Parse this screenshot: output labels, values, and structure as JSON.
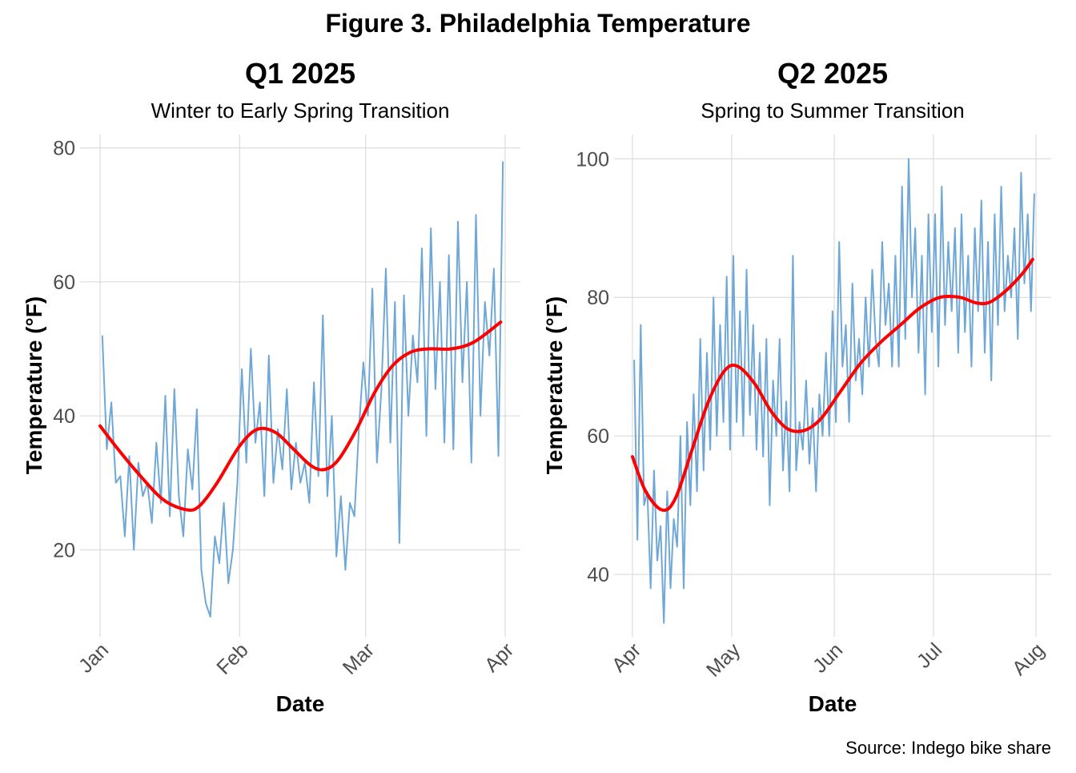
{
  "title": "Figure 3. Philadelphia Temperature",
  "caption": "Source: Indego bike share",
  "colors": {
    "raw": "#6fa8d6",
    "smooth": "#ff0000",
    "grid": "#d6d6d6"
  },
  "chart_data": [
    {
      "type": "line",
      "title": "Q1 2025",
      "subtitle": "Winter to Early Spring Transition",
      "xlabel": "Date",
      "ylabel": "Temperature (°F)",
      "xlim": [
        "2025-01-01",
        "2025-04-01"
      ],
      "ylim": [
        7,
        82
      ],
      "grid": true,
      "x_ticks": [
        {
          "date": "2025-01-01",
          "label": "Jan"
        },
        {
          "date": "2025-02-01",
          "label": "Feb"
        },
        {
          "date": "2025-03-01",
          "label": "Mar"
        },
        {
          "date": "2025-04-01",
          "label": "Apr"
        }
      ],
      "y_ticks": [
        20,
        40,
        60,
        80
      ],
      "year": 2025,
      "raw_series": [
        {
          "month": 1,
          "values": [
            52,
            35,
            42,
            30,
            31,
            22,
            34,
            20,
            33,
            28,
            30,
            24,
            36,
            27,
            43,
            25,
            44,
            28,
            22,
            35,
            29,
            41,
            17,
            12,
            10,
            22,
            18,
            27,
            15,
            20,
            30
          ]
        },
        {
          "month": 2,
          "values": [
            47,
            33,
            50,
            36,
            42,
            28,
            49,
            30,
            38,
            32,
            44,
            29,
            36,
            30,
            33,
            27,
            45,
            31,
            55,
            28,
            40,
            19,
            28,
            17,
            27,
            25,
            38,
            48
          ]
        },
        {
          "month": 3,
          "values": [
            40,
            59,
            33,
            44,
            62,
            36,
            57,
            21,
            58,
            40,
            52,
            45,
            65,
            37,
            68,
            44,
            60,
            36,
            64,
            35,
            69,
            45,
            60,
            33,
            70,
            40,
            57,
            49,
            62,
            34,
            78
          ]
        }
      ],
      "smooth_series": [
        [
          "2025-01-01",
          38.5
        ],
        [
          "2025-01-05",
          35
        ],
        [
          "2025-01-10",
          31
        ],
        [
          "2025-01-15",
          27.5
        ],
        [
          "2025-01-20",
          26
        ],
        [
          "2025-01-23",
          26.5
        ],
        [
          "2025-01-27",
          30
        ],
        [
          "2025-02-01",
          35.5
        ],
        [
          "2025-02-05",
          38
        ],
        [
          "2025-02-09",
          37.5
        ],
        [
          "2025-02-13",
          35
        ],
        [
          "2025-02-17",
          32.5
        ],
        [
          "2025-02-20",
          32
        ],
        [
          "2025-02-23",
          33.5
        ],
        [
          "2025-02-27",
          38
        ],
        [
          "2025-03-03",
          43.5
        ],
        [
          "2025-03-07",
          47.5
        ],
        [
          "2025-03-11",
          49.5
        ],
        [
          "2025-03-15",
          50
        ],
        [
          "2025-03-20",
          50
        ],
        [
          "2025-03-25",
          51
        ],
        [
          "2025-03-31",
          54
        ]
      ]
    },
    {
      "type": "line",
      "title": "Q2 2025",
      "subtitle": "Spring to Summer Transition",
      "xlabel": "Date",
      "ylabel": "Temperature (°F)",
      "xlim": [
        "2025-04-01",
        "2025-08-01"
      ],
      "ylim": [
        31,
        103.5
      ],
      "grid": true,
      "x_ticks": [
        {
          "date": "2025-04-01",
          "label": "Apr"
        },
        {
          "date": "2025-05-01",
          "label": "May"
        },
        {
          "date": "2025-06-01",
          "label": "Jun"
        },
        {
          "date": "2025-07-01",
          "label": "Jul"
        },
        {
          "date": "2025-08-01",
          "label": "Aug"
        }
      ],
      "y_ticks": [
        40,
        60,
        80,
        100
      ],
      "year": 2025,
      "raw_series": [
        {
          "month": 4,
          "values": [
            71,
            45,
            76,
            50,
            52,
            38,
            55,
            42,
            47,
            33,
            52,
            38,
            48,
            44,
            60,
            38,
            62,
            50,
            66,
            52,
            74,
            55,
            72,
            58,
            80,
            60,
            76,
            62,
            83,
            58
          ]
        },
        {
          "month": 5,
          "values": [
            86,
            62,
            78,
            60,
            84,
            63,
            76,
            58,
            72,
            57,
            74,
            50,
            68,
            60,
            74,
            55,
            65,
            52,
            86,
            55,
            62,
            58,
            68,
            56,
            64,
            52,
            66,
            60,
            72,
            60,
            78
          ]
        },
        {
          "month": 6,
          "values": [
            62,
            88,
            70,
            76,
            62,
            82,
            68,
            74,
            66,
            80,
            70,
            84,
            74,
            70,
            88,
            76,
            82,
            70,
            86,
            70,
            96,
            74,
            100,
            80,
            90,
            72,
            86,
            66,
            92,
            75
          ]
        },
        {
          "month": 7,
          "values": [
            92,
            70,
            96,
            76,
            88,
            78,
            90,
            72,
            92,
            75,
            86,
            70,
            90,
            78,
            94,
            72,
            88,
            68,
            92,
            76,
            96,
            78,
            86,
            80,
            90,
            74,
            98,
            82,
            92,
            78,
            95
          ]
        }
      ],
      "smooth_series": [
        [
          "2025-04-01",
          57
        ],
        [
          "2025-04-05",
          52
        ],
        [
          "2025-04-10",
          49.3
        ],
        [
          "2025-04-14",
          51
        ],
        [
          "2025-04-19",
          58
        ],
        [
          "2025-04-24",
          65
        ],
        [
          "2025-04-29",
          69.5
        ],
        [
          "2025-05-03",
          70
        ],
        [
          "2025-05-08",
          67.5
        ],
        [
          "2025-05-13",
          63.5
        ],
        [
          "2025-05-18",
          61
        ],
        [
          "2025-05-23",
          60.8
        ],
        [
          "2025-05-28",
          62.5
        ],
        [
          "2025-06-03",
          66.5
        ],
        [
          "2025-06-09",
          70.5
        ],
        [
          "2025-06-15",
          73.5
        ],
        [
          "2025-06-21",
          76
        ],
        [
          "2025-06-27",
          78.5
        ],
        [
          "2025-07-03",
          80
        ],
        [
          "2025-07-09",
          80
        ],
        [
          "2025-07-14",
          79.2
        ],
        [
          "2025-07-18",
          79.3
        ],
        [
          "2025-07-23",
          81
        ],
        [
          "2025-07-28",
          83.5
        ],
        [
          "2025-07-31",
          85.5
        ]
      ]
    }
  ]
}
